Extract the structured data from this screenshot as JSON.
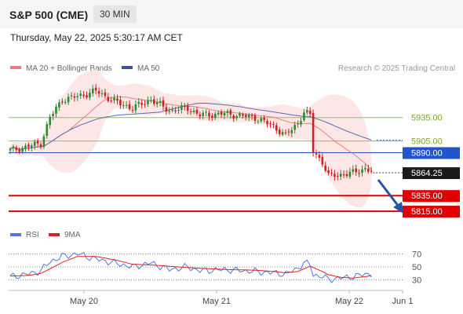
{
  "header": {
    "title": "S&P 500 (CME)",
    "timeframe": "30 MIN"
  },
  "date_line": "Thursday, May 22, 2025 5:30:17 AM CET",
  "legend": {
    "ma20": "MA 20 + Bollinger Bands",
    "ma50": "MA 50",
    "credit": "Research © 2025 Trading Central"
  },
  "rsi_legend": {
    "rsi": "RSI",
    "ma": "9MA"
  },
  "colors": {
    "up": "#2e8b2e",
    "down": "#cc2222",
    "ma20": "#e88080",
    "ma50": "#5b6bb5",
    "band": "#fde2e2",
    "support": "#e00000",
    "pivot": "#2255cc",
    "resistance": "#8cc63f",
    "rsi": "#5577dd",
    "rsi_ma": "#e02020",
    "arrow": "#2255aa"
  },
  "chart_data": {
    "type": "candlestick",
    "ylim": [
      5800,
      5985
    ],
    "x_labels": [
      "May 20",
      "May 21",
      "May 22",
      "Jun 1"
    ],
    "levels": [
      {
        "value": 5935.0,
        "label": "5935.00",
        "kind": "resistance"
      },
      {
        "value": 5905.0,
        "label": "5905.00",
        "kind": "resistance"
      },
      {
        "value": 5890.0,
        "label": "5890.00",
        "kind": "pivot"
      },
      {
        "value": 5835.0,
        "label": "5835.00",
        "kind": "support"
      },
      {
        "value": 5815.0,
        "label": "5815.00",
        "kind": "support"
      }
    ],
    "last_price": {
      "value": 5864.25,
      "label": "5864.25"
    },
    "anchors": [
      [
        0,
        5893
      ],
      [
        6,
        5898
      ],
      [
        10,
        5902
      ],
      [
        13,
        5935
      ],
      [
        17,
        5958
      ],
      [
        22,
        5962
      ],
      [
        28,
        5969
      ],
      [
        35,
        5954
      ],
      [
        40,
        5947
      ],
      [
        46,
        5958
      ],
      [
        52,
        5944
      ],
      [
        58,
        5947
      ],
      [
        62,
        5938
      ],
      [
        70,
        5940
      ],
      [
        80,
        5935
      ],
      [
        86,
        5924
      ],
      [
        90,
        5912
      ],
      [
        94,
        5928
      ],
      [
        96,
        5942
      ],
      [
        98,
        5938
      ],
      [
        99,
        5892
      ],
      [
        102,
        5878
      ],
      [
        104,
        5860
      ],
      [
        108,
        5862
      ],
      [
        112,
        5864
      ],
      [
        116,
        5870
      ],
      [
        118,
        5866
      ]
    ],
    "rsi": {
      "ticks": [
        70,
        50,
        30
      ],
      "ylim": [
        20,
        80
      ],
      "rsi_anchors": [
        [
          0,
          35
        ],
        [
          6,
          39
        ],
        [
          10,
          44
        ],
        [
          13,
          58
        ],
        [
          17,
          66
        ],
        [
          22,
          70
        ],
        [
          28,
          62
        ],
        [
          35,
          55
        ],
        [
          40,
          50
        ],
        [
          46,
          56
        ],
        [
          52,
          46
        ],
        [
          58,
          50
        ],
        [
          62,
          44
        ],
        [
          70,
          46
        ],
        [
          80,
          43
        ],
        [
          86,
          41
        ],
        [
          90,
          39
        ],
        [
          94,
          48
        ],
        [
          96,
          56
        ],
        [
          98,
          54
        ],
        [
          99,
          38
        ],
        [
          102,
          35
        ],
        [
          104,
          31
        ],
        [
          108,
          33
        ],
        [
          112,
          35
        ],
        [
          116,
          39
        ],
        [
          118,
          39
        ]
      ],
      "ma_anchors": [
        [
          0,
          36
        ],
        [
          6,
          37
        ],
        [
          10,
          40
        ],
        [
          13,
          47
        ],
        [
          17,
          57
        ],
        [
          22,
          66
        ],
        [
          28,
          66
        ],
        [
          35,
          60
        ],
        [
          40,
          54
        ],
        [
          46,
          53
        ],
        [
          52,
          51
        ],
        [
          58,
          49
        ],
        [
          62,
          48
        ],
        [
          70,
          46
        ],
        [
          80,
          45
        ],
        [
          86,
          43
        ],
        [
          90,
          41
        ],
        [
          94,
          43
        ],
        [
          96,
          47
        ],
        [
          98,
          51
        ],
        [
          99,
          49
        ],
        [
          102,
          43
        ],
        [
          104,
          38
        ],
        [
          108,
          34
        ],
        [
          112,
          33
        ],
        [
          116,
          35
        ],
        [
          118,
          37
        ]
      ]
    }
  }
}
